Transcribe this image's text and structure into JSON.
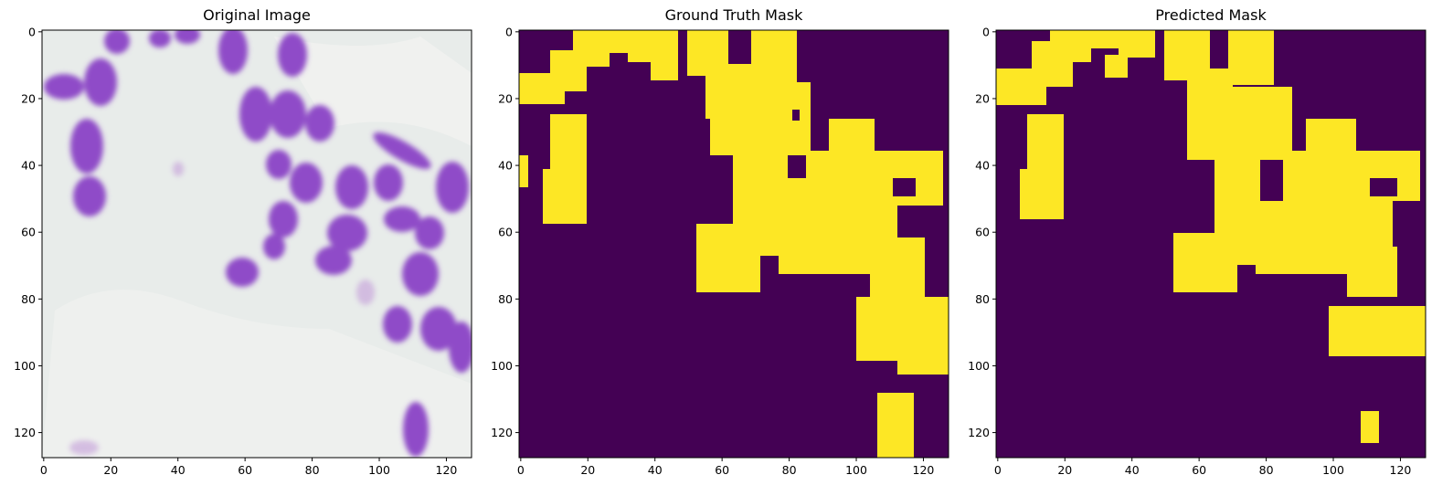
{
  "figure": {
    "panels": [
      {
        "title": "Original Image"
      },
      {
        "title": "Ground Truth Mask"
      },
      {
        "title": "Predicted Mask"
      }
    ],
    "x_ticks": [
      "0",
      "20",
      "40",
      "60",
      "80",
      "100",
      "120"
    ],
    "y_ticks": [
      "0",
      "20",
      "40",
      "60",
      "80",
      "100",
      "120"
    ],
    "mask_colors": {
      "background": "#440154",
      "foreground": "#fde725"
    },
    "image_colors": {
      "background": "#e6ebe9",
      "cells": "#8e48c6"
    }
  }
}
